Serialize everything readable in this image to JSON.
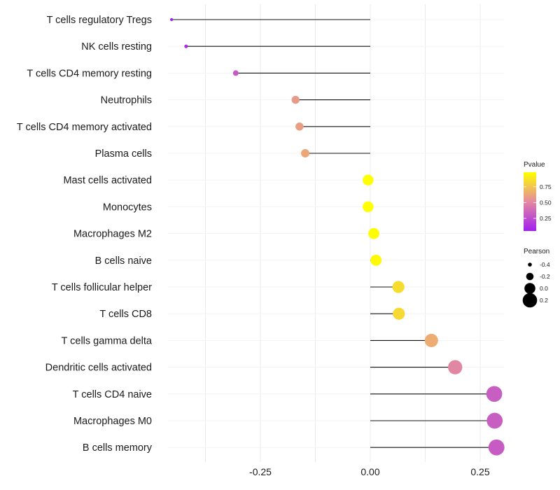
{
  "chart_data": {
    "type": "lollipop",
    "title": "",
    "xlabel": "",
    "ylabel": "",
    "xlim": [
      -0.47,
      0.43
    ],
    "xticks": [
      -0.25,
      0.0,
      0.25
    ],
    "xtick_labels": [
      "-0.25",
      "0.00",
      "0.25"
    ],
    "grid": true,
    "categories": [
      "T cells regulatory  Tregs",
      "NK cells resting",
      "T cells CD4 memory resting",
      "Neutrophils",
      "T cells CD4 memory activated",
      "Plasma cells",
      "Mast cells activated",
      "Monocytes",
      "Macrophages M2",
      "B cells naive",
      "T cells follicular helper",
      "T cells CD8",
      "T cells gamma delta",
      "Dendritic cells activated",
      "T cells CD4 naive",
      "Macrophages M0",
      "B cells memory"
    ],
    "pearson": [
      -0.452,
      -0.419,
      -0.306,
      -0.17,
      -0.161,
      -0.148,
      -0.005,
      -0.005,
      0.008,
      0.013,
      0.064,
      0.065,
      0.139,
      0.193,
      0.282,
      0.283,
      0.287
    ],
    "pvalue": [
      0.05,
      0.1,
      0.3,
      0.58,
      0.6,
      0.63,
      0.98,
      0.98,
      0.97,
      0.96,
      0.84,
      0.83,
      0.65,
      0.5,
      0.32,
      0.32,
      0.31
    ],
    "legend": {
      "color": {
        "title": "Pvalue",
        "ticks": [
          0.25,
          0.5,
          0.75
        ],
        "tick_labels": [
          "0.25",
          "0.50",
          "0.75"
        ],
        "range": [
          0.05,
          0.98
        ],
        "low_color": "#A020F0",
        "high_color": "#FFFF00"
      },
      "size": {
        "title": "Pearson",
        "values": [
          -0.4,
          -0.2,
          0.0,
          0.2
        ],
        "labels": [
          "-0.4",
          "-0.2",
          "0.0",
          "0.2"
        ]
      },
      "placement": "right"
    }
  }
}
